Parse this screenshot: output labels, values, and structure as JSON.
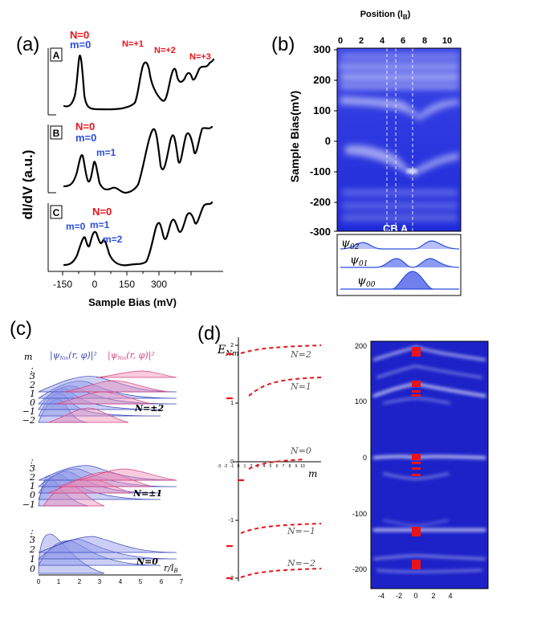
{
  "panel_a": {
    "label": "(a)",
    "ylabel": "dI/dV (a.u.)",
    "xlabel": "Sample Bias (mV)",
    "xticks": [
      "-150",
      "0",
      "150",
      "300"
    ],
    "curves": [
      {
        "tag": "A",
        "annotations": [
          {
            "text": "N=0",
            "color": "#e8141a"
          },
          {
            "text": "m=0",
            "color": "#2a4ee0"
          },
          {
            "text": "N=+1",
            "color": "#e8141a"
          },
          {
            "text": "N=+2",
            "color": "#e8141a"
          },
          {
            "text": "N=+3",
            "color": "#e8141a"
          }
        ]
      },
      {
        "tag": "B",
        "annotations": [
          {
            "text": "N=0",
            "color": "#e8141a"
          },
          {
            "text": "m=0",
            "color": "#2a4ee0"
          },
          {
            "text": "m=1",
            "color": "#2a4ee0"
          }
        ]
      },
      {
        "tag": "C",
        "annotations": [
          {
            "text": "N=0",
            "color": "#e8141a"
          },
          {
            "text": "m=0",
            "color": "#2a4ee0"
          },
          {
            "text": "m=1",
            "color": "#2a4ee0"
          },
          {
            "text": "m=2",
            "color": "#2a4ee0"
          }
        ]
      }
    ]
  },
  "panel_b": {
    "label": "(b)",
    "xlabel_main": "Position (l",
    "xlabel_sub": "B",
    "xlabel_close": ")",
    "ylabel": "Sample Bias(mV)",
    "xticks": [
      "0",
      "2",
      "4",
      "6",
      "8",
      "10"
    ],
    "yticks": [
      "300",
      "200",
      "100",
      "0",
      "-100",
      "-200",
      "-300"
    ],
    "line_labels": "CB A",
    "psi": [
      {
        "sym": "ψ",
        "sub": "02"
      },
      {
        "sym": "ψ",
        "sub": "01"
      },
      {
        "sym": "ψ",
        "sub": "00"
      }
    ]
  },
  "panel_c": {
    "label": "(c)",
    "m_label": "m",
    "col1_label": "|ψ",
    "col1_sub": "Nm",
    "col1_rest": "(r, φ)|²",
    "col2_label": "|ψ",
    "col2_sub": "Nm",
    "col2_rest": "(r, φ)|²",
    "groups": [
      {
        "name": "N=±2",
        "m": [
          "⋮",
          "3",
          "2",
          "1",
          "0",
          "−1",
          "−2"
        ]
      },
      {
        "name": "N=±1",
        "m": [
          "⋮",
          "3",
          "2",
          "1",
          "0",
          "−1"
        ]
      },
      {
        "name": "N=0",
        "m": [
          "⋮",
          "3",
          "2",
          "1",
          "0"
        ]
      }
    ],
    "xlabel": "r/l",
    "xlabel_sub": "B",
    "xticks": [
      "0",
      "1",
      "2",
      "3",
      "4",
      "5",
      "6",
      "7"
    ]
  },
  "panel_d": {
    "label": "(d)",
    "ylabel_main": "E",
    "ylabel_sub": "Nm",
    "xlabel": "m",
    "levels": [
      "N=2",
      "N=1",
      "N=0",
      "N=−1",
      "N=−2"
    ],
    "yticks": [
      "2",
      "1",
      "0",
      "-1",
      "-2"
    ],
    "xticks": [
      "-3",
      "-2",
      "-1",
      "0",
      "1",
      "2",
      "3",
      "4",
      "5",
      "6",
      "7",
      "8",
      "9",
      "10"
    ],
    "map_yticks": [
      "200",
      "100",
      "0",
      "-100",
      "-200"
    ],
    "map_xticks": [
      "-4",
      "-2",
      "0",
      "2",
      "4"
    ]
  },
  "colors": {
    "red": "#e8141a",
    "blue": "#2a4ee0",
    "map_blue": "#1c22c8",
    "pink": "#e27aa6"
  }
}
